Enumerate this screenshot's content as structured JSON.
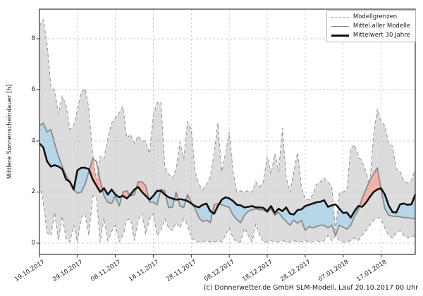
{
  "figure": {
    "footer": "(c) Donnerwetter.de GmbH SLM-Modell, Lauf 20.10.2017 00 Uhr"
  },
  "legend": {
    "items": [
      {
        "label": "Modellgrenzen",
        "style": "dashed-gray"
      },
      {
        "label": "Mittel aller Modelle",
        "style": "solid-gray"
      },
      {
        "label": "Mittelwert 30 Jahre",
        "style": "solid-black"
      }
    ]
  },
  "colors": {
    "band": "#dcdcdc",
    "bound_line": "#999999",
    "model_mean_line": "#8a8a8a",
    "mean30_line": "#111111",
    "fill_above": "#f1b3a6",
    "fill_below": "#b7d7e8",
    "grid": "#c9c9c9",
    "spine": "#333333"
  },
  "chart_data": {
    "type": "line",
    "title": "",
    "xlabel": "",
    "ylabel": "Mittlere Sonnenscheindauer [h]",
    "ylim": [
      -0.45,
      9.2
    ],
    "yticks": [
      0,
      2,
      4,
      6,
      8
    ],
    "ytick_labels": [
      "0",
      "2",
      "4",
      "6",
      "8"
    ],
    "x_unit": "days since 19.10.2017, model run 20.10.2017 00 Uhr",
    "xtick_days": [
      0,
      10,
      20,
      30,
      40,
      50,
      60,
      70,
      80,
      90
    ],
    "xtick_labels": [
      "19.10.2017",
      "29.10.2017",
      "08.11.2017",
      "18.11.2017",
      "28.11.2017",
      "08.12.2017",
      "18.12.2017",
      "28.12.2017",
      "07.01.2018",
      "17.01.2018"
    ],
    "grid": "dashed",
    "legend_position": "upper right",
    "series": [
      {
        "name": "Modellgrenzen oben",
        "role": "upper_bound",
        "style": "dashed",
        "values": [
          8.5,
          8.75,
          7.8,
          6.1,
          6.0,
          5.05,
          5.75,
          5.4,
          4.45,
          4.6,
          5.2,
          5.9,
          6.05,
          5.3,
          3.5,
          2.45,
          3.4,
          3.3,
          4.1,
          4.7,
          4.9,
          5.1,
          5.35,
          4.1,
          4.25,
          3.9,
          4.2,
          4.0,
          4.0,
          3.5,
          5.0,
          5.5,
          5.5,
          3.0,
          2.7,
          2.55,
          2.9,
          3.95,
          3.3,
          4.75,
          4.45,
          2.8,
          2.3,
          2.1,
          2.3,
          2.6,
          3.5,
          4.7,
          2.8,
          3.5,
          4.35,
          2.8,
          2.0,
          2.05,
          2.0,
          2.05,
          2.0,
          2.4,
          2.2,
          2.4,
          3.4,
          2.7,
          3.5,
          2.8,
          4.5,
          2.6,
          2.0,
          2.8,
          3.55,
          2.2,
          1.7,
          1.7,
          1.9,
          2.3,
          2.4,
          2.55,
          2.4,
          2.2,
          0.5,
          1.95,
          2.0,
          2.1,
          3.7,
          3.85,
          3.4,
          3.2,
          2.8,
          2.3,
          4.2,
          5.25,
          4.8,
          4.6,
          3.9,
          3.8,
          2.9,
          2.8,
          2.45,
          2.35,
          2.45,
          2.9
        ]
      },
      {
        "name": "Modellgrenzen unten",
        "role": "lower_bound",
        "style": "dashed",
        "values": [
          2.3,
          1.6,
          0.4,
          0.3,
          1.2,
          0.1,
          1.05,
          0.2,
          0.05,
          0.7,
          0.05,
          1.0,
          1.15,
          0.3,
          1.85,
          1.8,
          0.05,
          1.0,
          0.1,
          0.45,
          0.7,
          0.05,
          0.3,
          0.9,
          0.95,
          0.1,
          0.9,
          1.15,
          0.35,
          0.95,
          1.15,
          0.3,
          0.5,
          0.95,
          0.6,
          0.5,
          0.8,
          0.6,
          0.95,
          0.7,
          0.2,
          0.1,
          0.05,
          0.05,
          0.1,
          0.05,
          0.05,
          0.1,
          0.05,
          0.3,
          0.6,
          0.2,
          0.05,
          0.05,
          0.6,
          0.3,
          0.05,
          0.75,
          0.3,
          0.05,
          0.05,
          0.1,
          0.05,
          0.05,
          0.1,
          0.05,
          0.05,
          0.1,
          0.05,
          0.05,
          0.1,
          0.05,
          0.05,
          0.1,
          0.05,
          0.1,
          0.3,
          0.1,
          0.3,
          0.1,
          0.05,
          0.05,
          0.1,
          0.2,
          0.1,
          0.3,
          0.5,
          0.7,
          0.9,
          1.0,
          0.95,
          0.6,
          0.3,
          0.2,
          0.4,
          0.5,
          0.3,
          0.2,
          0.25,
          0.3
        ]
      },
      {
        "name": "Mittel aller Modelle",
        "role": "model_mean",
        "style": "solid",
        "values": [
          4.6,
          4.7,
          4.35,
          4.45,
          3.9,
          3.4,
          3.0,
          2.65,
          2.4,
          2.1,
          1.95,
          2.0,
          2.3,
          2.8,
          3.3,
          3.2,
          2.45,
          1.85,
          1.6,
          1.55,
          1.85,
          1.45,
          2.0,
          2.05,
          1.85,
          1.9,
          2.4,
          2.4,
          2.25,
          1.6,
          1.6,
          1.5,
          2.1,
          2.05,
          1.4,
          1.4,
          2.0,
          1.45,
          1.4,
          1.9,
          1.6,
          1.35,
          1.0,
          0.85,
          0.9,
          0.8,
          1.5,
          1.55,
          1.5,
          1.45,
          1.4,
          1.1,
          0.92,
          0.8,
          1.1,
          1.25,
          1.3,
          1.35,
          1.3,
          1.3,
          1.2,
          1.35,
          1.1,
          1.2,
          1.0,
          0.85,
          0.7,
          0.9,
          0.78,
          0.9,
          0.5,
          0.65,
          0.6,
          0.65,
          0.7,
          0.7,
          0.6,
          0.7,
          0.3,
          0.7,
          0.62,
          0.55,
          0.7,
          1.05,
          1.3,
          1.75,
          2.1,
          2.45,
          2.7,
          2.95,
          2.1,
          1.35,
          1.1,
          1.05,
          1.05,
          1.03,
          1.0,
          1.0,
          0.97,
          0.95
        ]
      },
      {
        "name": "Mittelwert 30 Jahre",
        "role": "mean_30y",
        "style": "solid-bold",
        "values": [
          3.9,
          3.75,
          3.2,
          3.0,
          3.05,
          3.0,
          2.9,
          2.5,
          2.4,
          2.1,
          2.85,
          2.95,
          2.95,
          2.9,
          2.5,
          2.25,
          2.0,
          2.15,
          1.9,
          2.1,
          1.9,
          1.8,
          1.85,
          1.75,
          1.9,
          2.1,
          2.2,
          2.0,
          1.85,
          1.7,
          1.85,
          2.05,
          2.05,
          1.9,
          1.8,
          1.75,
          1.7,
          1.72,
          1.7,
          1.65,
          1.55,
          1.45,
          1.4,
          1.5,
          1.55,
          1.25,
          1.15,
          1.45,
          1.7,
          1.8,
          1.75,
          1.65,
          1.5,
          1.48,
          1.4,
          1.42,
          1.45,
          1.4,
          1.4,
          1.38,
          1.25,
          1.45,
          1.18,
          1.35,
          1.25,
          1.4,
          1.15,
          1.12,
          1.3,
          1.32,
          1.45,
          1.5,
          1.55,
          1.6,
          1.62,
          1.68,
          1.42,
          1.48,
          1.52,
          1.35,
          1.18,
          1.2,
          1.0,
          1.25,
          1.45,
          1.42,
          1.58,
          1.8,
          2.0,
          2.1,
          2.15,
          1.9,
          1.48,
          1.22,
          1.2,
          1.52,
          1.55,
          1.5,
          1.52,
          1.9
        ]
      }
    ],
    "fills": [
      {
        "between": [
          "lower_bound",
          "upper_bound"
        ],
        "color": "#dcdcdc",
        "meaning": "model spread"
      },
      {
        "between": [
          "mean_30y",
          "model_mean"
        ],
        "where": "model_mean > mean_30y",
        "color": "#f1b3a6",
        "meaning": "sunnier than 30-year mean"
      },
      {
        "between": [
          "model_mean",
          "mean_30y"
        ],
        "where": "model_mean < mean_30y",
        "color": "#b7d7e8",
        "meaning": "duller than 30-year mean"
      }
    ]
  }
}
